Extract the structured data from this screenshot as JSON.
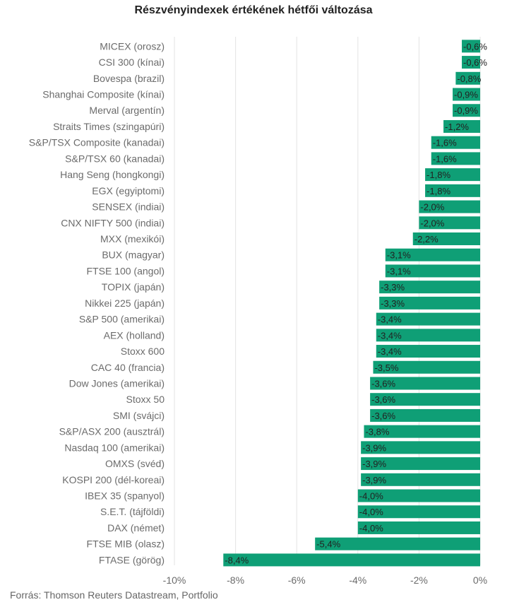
{
  "chart_data": {
    "type": "bar",
    "orientation": "horizontal",
    "title": "Részvényindexek értékének hétfői változása",
    "source": "Forrás: Thomson Reuters Datastream, Portfolio",
    "xlim": [
      -10,
      0
    ],
    "xticks": [
      -10,
      -8,
      -6,
      -4,
      -2,
      0
    ],
    "xtick_labels": [
      "-10%",
      "-8%",
      "-6%",
      "-4%",
      "-2%",
      "0%"
    ],
    "grid": true,
    "bar_color": "#0f9f76",
    "categories": [
      "MICEX (orosz)",
      "CSI 300 (kínai)",
      "Bovespa (brazil)",
      "Shanghai Composite (kínai)",
      "Merval (argentín)",
      "Straits Times (szingapúri)",
      "S&P/TSX Composite (kanadai)",
      "S&P/TSX 60 (kanadai)",
      "Hang Seng (hongkongi)",
      "EGX (egyiptomi)",
      "SENSEX (indiai)",
      "CNX NIFTY 500 (indiai)",
      "MXX (mexikói)",
      "BUX (magyar)",
      "FTSE 100 (angol)",
      "TOPIX (japán)",
      "Nikkei 225 (japán)",
      "S&P 500 (amerikai)",
      "AEX (holland)",
      "Stoxx 600",
      "CAC 40 (francia)",
      "Dow Jones (amerikai)",
      "Stoxx 50",
      "SMI (svájci)",
      "S&P/ASX 200 (ausztrál)",
      "Nasdaq 100 (amerikai)",
      "OMXS (svéd)",
      "KOSPI 200 (dél-koreai)",
      "IBEX 35 (spanyol)",
      "S.E.T. (tájföldi)",
      "DAX (német)",
      "FTSE MIB (olasz)",
      "FTASE (görög)"
    ],
    "values": [
      -0.6,
      -0.6,
      -0.8,
      -0.9,
      -0.9,
      -1.2,
      -1.6,
      -1.6,
      -1.8,
      -1.8,
      -2.0,
      -2.0,
      -2.2,
      -3.1,
      -3.1,
      -3.3,
      -3.3,
      -3.4,
      -3.4,
      -3.4,
      -3.5,
      -3.6,
      -3.6,
      -3.6,
      -3.8,
      -3.9,
      -3.9,
      -3.9,
      -4.0,
      -4.0,
      -4.0,
      -5.4,
      -8.4
    ],
    "value_labels": [
      "-0,6%",
      "-0,6%",
      "-0,8%",
      "-0,9%",
      "-0,9%",
      "-1,2%",
      "-1,6%",
      "-1,6%",
      "-1,8%",
      "-1,8%",
      "-2,0%",
      "-2,0%",
      "-2,2%",
      "-3,1%",
      "-3,1%",
      "-3,3%",
      "-3,3%",
      "-3,4%",
      "-3,4%",
      "-3,4%",
      "-3,5%",
      "-3,6%",
      "-3,6%",
      "-3,6%",
      "-3,8%",
      "-3,9%",
      "-3,9%",
      "-3,9%",
      "-4,0%",
      "-4,0%",
      "-4,0%",
      "-5,4%",
      "-8,4%"
    ]
  }
}
